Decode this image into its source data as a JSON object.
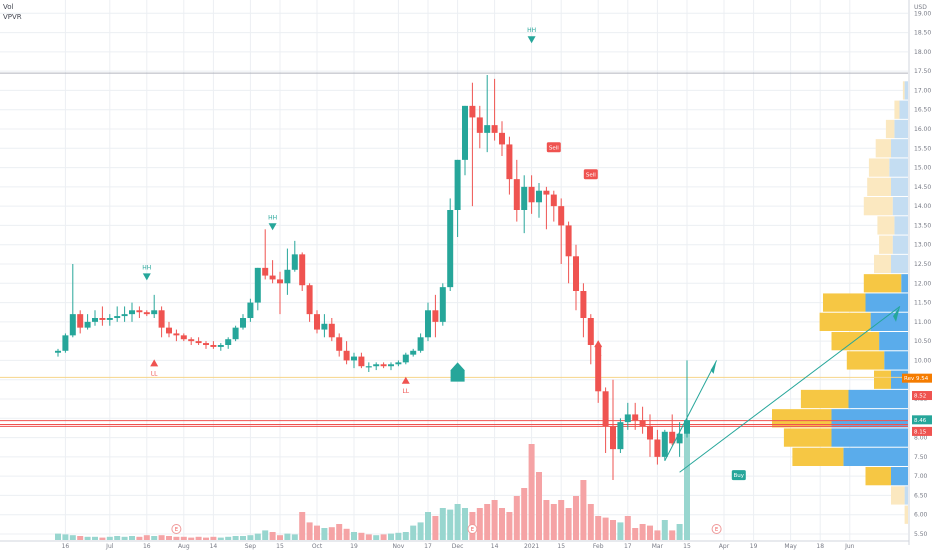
{
  "indicators": {
    "vol": "Vol",
    "vpvr": "VPVR"
  },
  "currency": "USD",
  "colors": {
    "up": "#26a69a",
    "down": "#ef5350",
    "up_vol": "#98d6cf",
    "down_vol": "#f5a3a5",
    "vp_up": "#5aaceb",
    "vp_down": "#f6c744",
    "vp_up_light": "#c4ddf2",
    "vp_down_light": "#fbe8c0",
    "grid": "#eceff3",
    "axis_text": "#787b86"
  },
  "chart_data": {
    "type": "candlestick",
    "ylim": [
      5.5,
      19.5
    ],
    "y_ticks": [
      5.5,
      6.0,
      6.5,
      7.0,
      7.5,
      8.0,
      8.5,
      9.0,
      9.5,
      10.0,
      10.5,
      11.0,
      11.5,
      12.0,
      12.5,
      13.0,
      13.5,
      14.0,
      14.5,
      15.0,
      15.5,
      16.0,
      16.5,
      17.0,
      17.5,
      18.0,
      18.5,
      19.0
    ],
    "x_labels": [
      {
        "i": 1,
        "label": "16"
      },
      {
        "i": 7,
        "label": "Jul"
      },
      {
        "i": 12,
        "label": "16"
      },
      {
        "i": 17,
        "label": "Aug"
      },
      {
        "i": 21,
        "label": "14"
      },
      {
        "i": 26,
        "label": "Sep"
      },
      {
        "i": 30,
        "label": "15"
      },
      {
        "i": 35,
        "label": "Oct"
      },
      {
        "i": 40,
        "label": "19"
      },
      {
        "i": 46,
        "label": "Nov"
      },
      {
        "i": 50,
        "label": "17"
      },
      {
        "i": 54,
        "label": "Dec"
      },
      {
        "i": 59,
        "label": "14"
      },
      {
        "i": 64,
        "label": "2021"
      },
      {
        "i": 68,
        "label": "15"
      },
      {
        "i": 73,
        "label": "Feb"
      },
      {
        "i": 77,
        "label": "17"
      },
      {
        "i": 81,
        "label": "Mar"
      },
      {
        "i": 85,
        "label": "15"
      },
      {
        "i": 90,
        "label": "Apr"
      },
      {
        "i": 94,
        "label": "19"
      },
      {
        "i": 99,
        "label": "May"
      },
      {
        "i": 103,
        "label": "18"
      },
      {
        "i": 107,
        "label": "Jun"
      }
    ],
    "price_tags": [
      {
        "label": "Rev",
        "value": "9.54",
        "price": 9.54,
        "color": "#f57c00"
      },
      {
        "label": "",
        "value": "8.52",
        "price": 9.09,
        "color": "#ef5350"
      },
      {
        "label": "",
        "value": "8.46",
        "price": 8.46,
        "color": "#26a69a"
      },
      {
        "label": "",
        "value": "8.15",
        "price": 8.16,
        "color": "#ef5350"
      }
    ],
    "h_lines": [
      17.45,
      9.56,
      8.44,
      8.34,
      8.29
    ],
    "annotations": [
      {
        "text": "HH",
        "i": 12,
        "price": 12.1,
        "color": "#26a69a",
        "dir": "down"
      },
      {
        "text": "HH",
        "i": 29,
        "price": 13.4,
        "color": "#26a69a",
        "dir": "down"
      },
      {
        "text": "HH",
        "i": 64,
        "price": 18.25,
        "color": "#26a69a",
        "dir": "down"
      },
      {
        "text": "LL",
        "i": 13,
        "price": 10.0,
        "color": "#ef5350",
        "dir": "up"
      },
      {
        "text": "LL",
        "i": 47,
        "price": 9.55,
        "color": "#ef5350",
        "dir": "up"
      },
      {
        "text": "LL",
        "i": 73,
        "price": 10.5,
        "color": "#ef5350",
        "dir": "up"
      },
      {
        "text": "Sell",
        "i": 67,
        "price": 15.5,
        "color": "#ef5350",
        "dir": "tag"
      },
      {
        "text": "Sell",
        "i": 72,
        "price": 14.8,
        "color": "#ef5350",
        "dir": "tag"
      },
      {
        "text": "Buy",
        "i": 92,
        "price": 7.0,
        "color": "#26a69a",
        "dir": "tag"
      }
    ],
    "event_markers": [
      {
        "text": "E",
        "i": 16
      },
      {
        "text": "E",
        "i": 56
      },
      {
        "text": "E",
        "i": 89
      }
    ],
    "ohlc": [
      [
        10.2,
        10.3,
        10.1,
        10.25
      ],
      [
        10.25,
        10.7,
        10.2,
        10.65
      ],
      [
        10.65,
        12.5,
        10.6,
        11.2
      ],
      [
        11.2,
        11.3,
        10.7,
        10.85
      ],
      [
        10.85,
        11.2,
        10.8,
        11.0
      ],
      [
        11.0,
        11.3,
        10.9,
        11.1
      ],
      [
        11.1,
        11.4,
        10.9,
        11.05
      ],
      [
        11.05,
        11.2,
        10.9,
        11.1
      ],
      [
        11.1,
        11.4,
        11.0,
        11.15
      ],
      [
        11.15,
        11.4,
        11.0,
        11.2
      ],
      [
        11.2,
        11.5,
        11.0,
        11.3
      ],
      [
        11.3,
        11.4,
        11.1,
        11.25
      ],
      [
        11.25,
        11.3,
        11.15,
        11.2
      ],
      [
        11.2,
        11.7,
        11.1,
        11.3
      ],
      [
        11.3,
        11.4,
        10.6,
        10.85
      ],
      [
        10.85,
        11.0,
        10.6,
        10.7
      ],
      [
        10.7,
        10.8,
        10.5,
        10.65
      ],
      [
        10.65,
        10.7,
        10.5,
        10.55
      ],
      [
        10.55,
        10.6,
        10.4,
        10.5
      ],
      [
        10.5,
        10.6,
        10.4,
        10.45
      ],
      [
        10.45,
        10.5,
        10.3,
        10.4
      ],
      [
        10.4,
        10.5,
        10.3,
        10.35
      ],
      [
        10.35,
        10.45,
        10.25,
        10.4
      ],
      [
        10.4,
        10.6,
        10.3,
        10.55
      ],
      [
        10.55,
        10.9,
        10.5,
        10.85
      ],
      [
        10.85,
        11.2,
        10.8,
        11.1
      ],
      [
        11.1,
        11.6,
        11.0,
        11.5
      ],
      [
        11.5,
        12.4,
        11.3,
        12.4
      ],
      [
        12.4,
        13.4,
        12.1,
        12.2
      ],
      [
        12.2,
        12.6,
        12.0,
        12.1
      ],
      [
        12.1,
        12.3,
        11.2,
        12.0
      ],
      [
        12.0,
        12.9,
        11.7,
        12.35
      ],
      [
        12.35,
        13.1,
        12.3,
        12.75
      ],
      [
        12.75,
        12.8,
        11.8,
        11.95
      ],
      [
        11.95,
        12.0,
        11.0,
        11.2
      ],
      [
        11.2,
        11.3,
        10.7,
        10.8
      ],
      [
        10.8,
        11.2,
        10.6,
        10.95
      ],
      [
        10.95,
        11.1,
        10.5,
        10.6
      ],
      [
        10.6,
        10.7,
        10.1,
        10.25
      ],
      [
        10.25,
        10.5,
        9.9,
        10.0
      ],
      [
        10.0,
        10.2,
        9.8,
        10.1
      ],
      [
        10.1,
        10.2,
        9.8,
        9.85
      ],
      [
        9.85,
        9.95,
        9.7,
        9.85
      ],
      [
        9.85,
        9.95,
        9.75,
        9.9
      ],
      [
        9.9,
        9.95,
        9.8,
        9.85
      ],
      [
        9.85,
        9.95,
        9.75,
        9.9
      ],
      [
        9.9,
        10.0,
        9.85,
        9.95
      ],
      [
        9.95,
        10.2,
        9.9,
        10.15
      ],
      [
        10.15,
        10.3,
        10.1,
        10.25
      ],
      [
        10.25,
        10.7,
        10.2,
        10.6
      ],
      [
        10.6,
        11.5,
        10.5,
        11.3
      ],
      [
        11.3,
        11.7,
        10.6,
        11.0
      ],
      [
        11.0,
        12.0,
        10.9,
        11.9
      ],
      [
        11.9,
        14.2,
        11.8,
        13.9
      ],
      [
        13.9,
        15.2,
        13.2,
        15.2
      ],
      [
        15.2,
        16.6,
        14.8,
        16.6
      ],
      [
        16.6,
        17.2,
        14.0,
        16.3
      ],
      [
        16.3,
        16.6,
        15.5,
        15.9
      ],
      [
        15.9,
        17.4,
        15.4,
        16.1
      ],
      [
        16.1,
        17.3,
        15.7,
        15.9
      ],
      [
        15.9,
        16.2,
        15.3,
        15.6
      ],
      [
        15.6,
        15.8,
        14.3,
        14.7
      ],
      [
        14.7,
        15.2,
        13.6,
        13.9
      ],
      [
        13.9,
        14.8,
        13.3,
        14.5
      ],
      [
        14.5,
        14.8,
        13.8,
        14.1
      ],
      [
        14.1,
        14.6,
        13.7,
        14.4
      ],
      [
        14.4,
        14.5,
        13.4,
        14.3
      ],
      [
        14.3,
        14.4,
        13.6,
        14.0
      ],
      [
        14.0,
        14.2,
        12.5,
        13.5
      ],
      [
        13.5,
        13.6,
        12.0,
        12.7
      ],
      [
        12.7,
        13.0,
        11.3,
        11.8
      ],
      [
        11.8,
        12.0,
        10.6,
        11.1
      ],
      [
        11.1,
        11.2,
        9.9,
        10.4
      ],
      [
        10.4,
        10.5,
        8.9,
        9.2
      ],
      [
        9.2,
        9.3,
        7.6,
        8.3
      ],
      [
        8.3,
        9.5,
        6.9,
        7.7
      ],
      [
        7.7,
        8.5,
        7.6,
        8.4
      ],
      [
        8.4,
        8.9,
        8.2,
        8.6
      ],
      [
        8.6,
        8.9,
        8.2,
        8.45
      ],
      [
        8.45,
        8.8,
        8.1,
        8.3
      ],
      [
        8.3,
        8.6,
        7.5,
        7.95
      ],
      [
        7.95,
        8.2,
        7.3,
        7.5
      ],
      [
        7.5,
        8.2,
        7.4,
        8.15
      ],
      [
        8.15,
        8.6,
        7.8,
        7.85
      ],
      [
        7.85,
        8.4,
        7.5,
        8.1
      ],
      [
        8.1,
        10.0,
        8.0,
        8.45
      ]
    ],
    "volume": [
      {
        "v": 0.08,
        "up": true
      },
      {
        "v": 0.07,
        "up": true
      },
      {
        "v": 0.06,
        "up": true
      },
      {
        "v": 0.05,
        "up": false
      },
      {
        "v": 0.04,
        "up": true
      },
      {
        "v": 0.04,
        "up": true
      },
      {
        "v": 0.03,
        "up": false
      },
      {
        "v": 0.04,
        "up": true
      },
      {
        "v": 0.05,
        "up": true
      },
      {
        "v": 0.04,
        "up": true
      },
      {
        "v": 0.05,
        "up": true
      },
      {
        "v": 0.04,
        "up": false
      },
      {
        "v": 0.06,
        "up": false
      },
      {
        "v": 0.05,
        "up": true
      },
      {
        "v": 0.06,
        "up": false
      },
      {
        "v": 0.05,
        "up": false
      },
      {
        "v": 0.04,
        "up": false
      },
      {
        "v": 0.04,
        "up": false
      },
      {
        "v": 0.03,
        "up": false
      },
      {
        "v": 0.04,
        "up": false
      },
      {
        "v": 0.03,
        "up": false
      },
      {
        "v": 0.04,
        "up": false
      },
      {
        "v": 0.03,
        "up": true
      },
      {
        "v": 0.04,
        "up": true
      },
      {
        "v": 0.05,
        "up": true
      },
      {
        "v": 0.05,
        "up": true
      },
      {
        "v": 0.06,
        "up": true
      },
      {
        "v": 0.08,
        "up": true
      },
      {
        "v": 0.12,
        "up": true
      },
      {
        "v": 0.1,
        "up": false
      },
      {
        "v": 0.06,
        "up": false
      },
      {
        "v": 0.08,
        "up": true
      },
      {
        "v": 0.07,
        "up": true
      },
      {
        "v": 0.35,
        "up": false
      },
      {
        "v": 0.22,
        "up": false
      },
      {
        "v": 0.18,
        "up": false
      },
      {
        "v": 0.15,
        "up": true
      },
      {
        "v": 0.16,
        "up": false
      },
      {
        "v": 0.2,
        "up": false
      },
      {
        "v": 0.14,
        "up": false
      },
      {
        "v": 0.1,
        "up": true
      },
      {
        "v": 0.09,
        "up": false
      },
      {
        "v": 0.07,
        "up": false
      },
      {
        "v": 0.06,
        "up": true
      },
      {
        "v": 0.07,
        "up": false
      },
      {
        "v": 0.08,
        "up": true
      },
      {
        "v": 0.09,
        "up": true
      },
      {
        "v": 0.1,
        "up": true
      },
      {
        "v": 0.18,
        "up": true
      },
      {
        "v": 0.22,
        "up": true
      },
      {
        "v": 0.35,
        "up": true
      },
      {
        "v": 0.3,
        "up": false
      },
      {
        "v": 0.4,
        "up": true
      },
      {
        "v": 0.38,
        "up": true
      },
      {
        "v": 0.45,
        "up": true
      },
      {
        "v": 0.4,
        "up": true
      },
      {
        "v": 0.35,
        "up": false
      },
      {
        "v": 0.4,
        "up": false
      },
      {
        "v": 0.45,
        "up": false
      },
      {
        "v": 0.5,
        "up": false
      },
      {
        "v": 0.4,
        "up": false
      },
      {
        "v": 0.35,
        "up": false
      },
      {
        "v": 0.55,
        "up": false
      },
      {
        "v": 0.65,
        "up": false
      },
      {
        "v": 1.2,
        "up": false
      },
      {
        "v": 0.85,
        "up": false
      },
      {
        "v": 0.5,
        "up": false
      },
      {
        "v": 0.45,
        "up": false
      },
      {
        "v": 0.5,
        "up": false
      },
      {
        "v": 0.4,
        "up": false
      },
      {
        "v": 0.55,
        "up": false
      },
      {
        "v": 0.75,
        "up": false
      },
      {
        "v": 0.45,
        "up": false
      },
      {
        "v": 0.3,
        "up": false
      },
      {
        "v": 0.28,
        "up": false
      },
      {
        "v": 0.25,
        "up": false
      },
      {
        "v": 0.22,
        "up": true
      },
      {
        "v": 0.3,
        "up": false
      },
      {
        "v": 0.15,
        "up": false
      },
      {
        "v": 0.2,
        "up": false
      },
      {
        "v": 0.18,
        "up": false
      },
      {
        "v": 0.12,
        "up": false
      },
      {
        "v": 0.25,
        "up": true
      },
      {
        "v": 0.12,
        "up": false
      },
      {
        "v": 0.2,
        "up": true
      },
      {
        "v": 1.5,
        "up": true
      }
    ],
    "vpvr": [
      {
        "price": 17.0,
        "up": 0.02,
        "down": 0.01,
        "light": true
      },
      {
        "price": 16.5,
        "up": 0.05,
        "down": 0.03,
        "light": true
      },
      {
        "price": 16.0,
        "up": 0.08,
        "down": 0.05,
        "light": true
      },
      {
        "price": 15.5,
        "up": 0.1,
        "down": 0.09,
        "light": true
      },
      {
        "price": 15.0,
        "up": 0.11,
        "down": 0.12,
        "light": true
      },
      {
        "price": 14.5,
        "up": 0.1,
        "down": 0.14,
        "light": true
      },
      {
        "price": 14.0,
        "up": 0.09,
        "down": 0.17,
        "light": true
      },
      {
        "price": 13.5,
        "up": 0.08,
        "down": 0.1,
        "light": true
      },
      {
        "price": 13.0,
        "up": 0.09,
        "down": 0.08,
        "light": true
      },
      {
        "price": 12.5,
        "up": 0.1,
        "down": 0.1,
        "light": true
      },
      {
        "price": 12.0,
        "up": 0.04,
        "down": 0.22,
        "light": false
      },
      {
        "price": 11.5,
        "up": 0.25,
        "down": 0.25,
        "light": false
      },
      {
        "price": 11.0,
        "up": 0.22,
        "down": 0.3,
        "light": false
      },
      {
        "price": 10.5,
        "up": 0.17,
        "down": 0.28,
        "light": false
      },
      {
        "price": 10.0,
        "up": 0.14,
        "down": 0.22,
        "light": false
      },
      {
        "price": 9.5,
        "up": 0.1,
        "down": 0.1,
        "light": false
      },
      {
        "price": 9.0,
        "up": 0.35,
        "down": 0.28,
        "light": false
      },
      {
        "price": 8.5,
        "up": 0.45,
        "down": 0.35,
        "light": false
      },
      {
        "price": 8.0,
        "up": 0.45,
        "down": 0.28,
        "light": false
      },
      {
        "price": 7.5,
        "up": 0.38,
        "down": 0.3,
        "light": false
      },
      {
        "price": 7.0,
        "up": 0.1,
        "down": 0.15,
        "light": false
      },
      {
        "price": 6.5,
        "up": 0.02,
        "down": 0.08,
        "light": true
      },
      {
        "price": 6.0,
        "up": 0.0,
        "down": 0.02,
        "light": true
      }
    ]
  }
}
